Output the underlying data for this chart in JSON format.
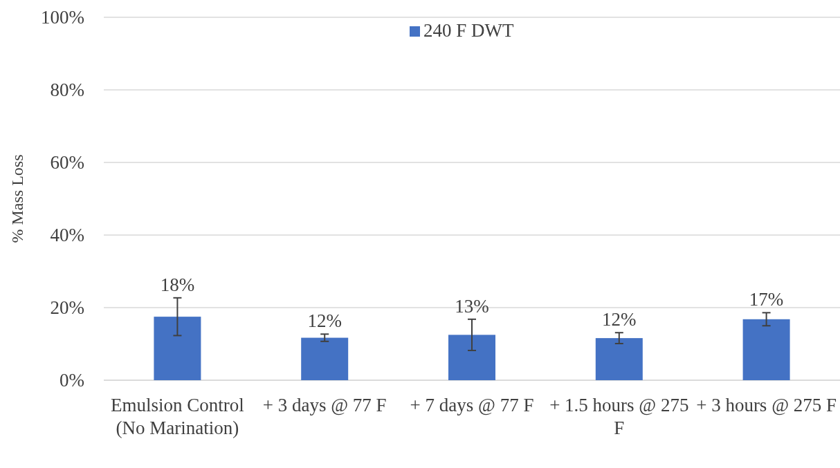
{
  "chart_data": {
    "type": "bar",
    "ylabel": "% Mass Loss",
    "categories": [
      "Emulsion Control (No Marination)",
      "+ 3 days @ 77 F",
      "+ 7 days @ 77 F",
      "+ 1.5 hours @ 275 F",
      "+ 3 hours @ 275 F"
    ],
    "series": [
      {
        "name": "240 F DWT",
        "color": "#4472c4",
        "values": [
          17.5,
          11.7,
          12.5,
          11.6,
          16.8
        ],
        "errors": [
          5.2,
          1.0,
          4.3,
          1.5,
          1.8
        ],
        "value_labels": [
          "18%",
          "12%",
          "13%",
          "12%",
          "17%"
        ]
      }
    ],
    "ylim": [
      0,
      100
    ],
    "yticks": [
      {
        "value": 0,
        "label": "0%"
      },
      {
        "value": 20,
        "label": "20%"
      },
      {
        "value": 40,
        "label": "40%"
      },
      {
        "value": 60,
        "label": "60%"
      },
      {
        "value": 80,
        "label": "80%"
      },
      {
        "value": 100,
        "label": "100%"
      }
    ],
    "grid": "y",
    "legend": "top"
  }
}
